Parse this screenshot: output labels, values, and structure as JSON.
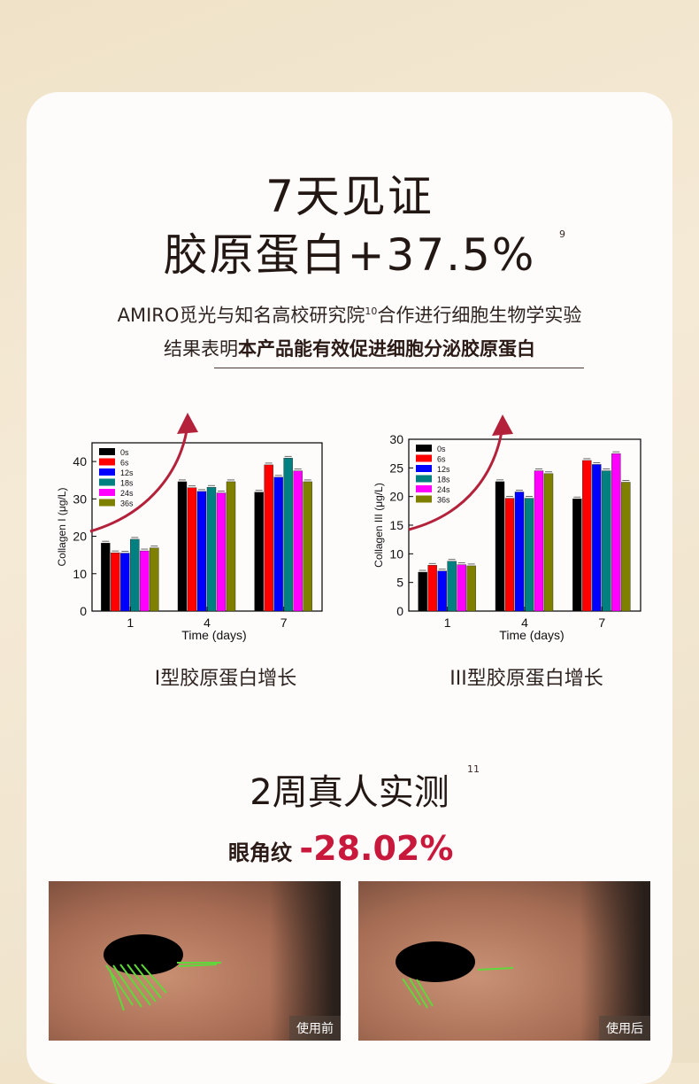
{
  "header": {
    "title_line1": "7天见证",
    "title_line2": "胶原蛋白+37.5%",
    "title_sup": "9",
    "intro_line1_a": "AMIRO觅光与知名高校研究院",
    "intro_line1_sup": "10",
    "intro_line1_b": "合作进行细胞生物学实验",
    "intro_line2_plain": "结果表明",
    "intro_line2_bold": "本产品能有效促进细胞分泌胶原蛋白"
  },
  "chart_data": [
    {
      "type": "bar",
      "title": "",
      "xlabel": "Time (days)",
      "ylabel": "Collagen I (μg/L)",
      "categories": [
        "1",
        "4",
        "7"
      ],
      "ylim": [
        0,
        45
      ],
      "yticks": [
        "0",
        "10",
        "20",
        "30",
        "40"
      ],
      "legend_position": "top-left",
      "series": [
        {
          "name": "0s",
          "color": "#000000",
          "values": [
            18.2,
            34.6,
            31.8
          ]
        },
        {
          "name": "6s",
          "color": "#ff0000",
          "values": [
            15.6,
            33.0,
            39.1
          ]
        },
        {
          "name": "12s",
          "color": "#0000ff",
          "values": [
            15.5,
            32.0,
            35.8
          ]
        },
        {
          "name": "18s",
          "color": "#008080",
          "values": [
            19.2,
            33.1,
            40.9
          ]
        },
        {
          "name": "24s",
          "color": "#ff00ff",
          "values": [
            16.1,
            31.6,
            37.5
          ]
        },
        {
          "name": "36s",
          "color": "#808000",
          "values": [
            16.9,
            34.6,
            34.6
          ]
        }
      ],
      "caption": "I型胶原蛋白增长"
    },
    {
      "type": "bar",
      "title": "",
      "xlabel": "Time (days)",
      "ylabel": "Collagen III (μg/L)",
      "categories": [
        "1",
        "4",
        "7"
      ],
      "ylim": [
        0,
        30
      ],
      "yticks": [
        "0",
        "5",
        "10",
        "15",
        "20",
        "25",
        "30"
      ],
      "legend_position": "top-left",
      "series": [
        {
          "name": "0s",
          "color": "#000000",
          "values": [
            6.8,
            22.6,
            19.6
          ]
        },
        {
          "name": "6s",
          "color": "#ff0000",
          "values": [
            8.0,
            19.7,
            26.3
          ]
        },
        {
          "name": "12s",
          "color": "#0000ff",
          "values": [
            7.0,
            20.8,
            25.6
          ]
        },
        {
          "name": "18s",
          "color": "#008080",
          "values": [
            8.7,
            19.7,
            24.5
          ]
        },
        {
          "name": "24s",
          "color": "#ff00ff",
          "values": [
            8.1,
            24.5,
            27.5
          ]
        },
        {
          "name": "36s",
          "color": "#808000",
          "values": [
            7.9,
            24.0,
            22.5
          ]
        }
      ],
      "caption": "III型胶原蛋白增长"
    }
  ],
  "section2": {
    "title": "2周真人实测",
    "title_sup": "11",
    "stat_label": "眼角纹",
    "stat_value": "-28.02%",
    "photo_before_label": "使用前",
    "photo_after_label": "使用后"
  },
  "colors": {
    "accent_red": "#c8183c",
    "arrow": "#b3213a"
  }
}
